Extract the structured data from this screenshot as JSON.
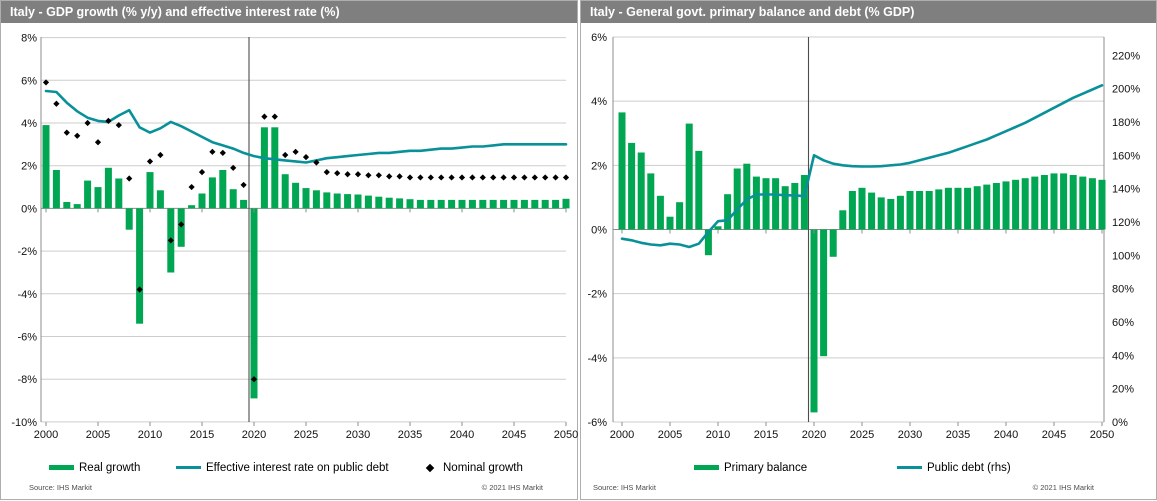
{
  "colors": {
    "bar_green": "#00a651",
    "line_teal": "#089199",
    "scatter_black": "#000000",
    "titlebar_gray": "#7f7f7f"
  },
  "chart_data": [
    {
      "type": "bar+line+scatter",
      "title": "Italy - GDP growth (% y/y) and effective interest rate (%)",
      "source": "Source:  IHS Markit",
      "copyright": "© 2021  IHS Markit",
      "legend_position": "bottom",
      "grid": true,
      "ylim": [
        -10,
        8
      ],
      "divider_year": 2019.5,
      "x_ticks": [
        "2000",
        "2005",
        "2010",
        "2015",
        "2020",
        "2025",
        "2030",
        "2035",
        "2040",
        "2045",
        "2050"
      ],
      "y_ticks": [
        {
          "v": 8,
          "label": "8%"
        },
        {
          "v": 6,
          "label": "6%"
        },
        {
          "v": 4,
          "label": "4%"
        },
        {
          "v": 2,
          "label": "2%"
        },
        {
          "v": 0,
          "label": "0%"
        },
        {
          "v": -2,
          "label": "-2%"
        },
        {
          "v": -4,
          "label": "-4%"
        },
        {
          "v": -6,
          "label": "-6%"
        },
        {
          "v": -8,
          "label": "-8%"
        },
        {
          "v": -10,
          "label": "-10%"
        }
      ],
      "years": [
        2000,
        2001,
        2002,
        2003,
        2004,
        2005,
        2006,
        2007,
        2008,
        2009,
        2010,
        2011,
        2012,
        2013,
        2014,
        2015,
        2016,
        2017,
        2018,
        2019,
        2020,
        2021,
        2022,
        2023,
        2024,
        2025,
        2026,
        2027,
        2028,
        2029,
        2030,
        2031,
        2032,
        2033,
        2034,
        2035,
        2036,
        2037,
        2038,
        2039,
        2040,
        2041,
        2042,
        2043,
        2044,
        2045,
        2046,
        2047,
        2048,
        2049,
        2050
      ],
      "series": [
        {
          "name": "Real growth",
          "type": "bar",
          "color": "#00a651",
          "axis": "left",
          "values": [
            3.9,
            1.8,
            0.3,
            0.2,
            1.3,
            1.0,
            1.9,
            1.4,
            -1.0,
            -5.4,
            1.7,
            0.85,
            -3.0,
            -1.8,
            0.15,
            0.7,
            1.45,
            1.8,
            0.9,
            0.4,
            -8.9,
            3.8,
            3.8,
            1.6,
            1.2,
            0.95,
            0.85,
            0.75,
            0.7,
            0.67,
            0.65,
            0.6,
            0.55,
            0.5,
            0.47,
            0.43,
            0.4,
            0.4,
            0.4,
            0.4,
            0.4,
            0.4,
            0.4,
            0.4,
            0.4,
            0.4,
            0.4,
            0.4,
            0.4,
            0.4,
            0.45
          ]
        },
        {
          "name": "Effective interest rate on public debt",
          "type": "line",
          "color": "#089199",
          "axis": "left",
          "values": [
            5.5,
            5.45,
            4.95,
            4.55,
            4.25,
            4.1,
            4.05,
            4.35,
            4.6,
            3.8,
            3.55,
            3.75,
            4.05,
            3.85,
            3.6,
            3.35,
            3.1,
            2.95,
            2.8,
            2.6,
            2.45,
            2.35,
            2.3,
            2.25,
            2.2,
            2.15,
            2.25,
            2.35,
            2.4,
            2.45,
            2.5,
            2.55,
            2.6,
            2.6,
            2.65,
            2.7,
            2.7,
            2.75,
            2.8,
            2.8,
            2.85,
            2.9,
            2.9,
            2.95,
            3.0,
            3.0,
            3.0,
            3.0,
            3.0,
            3.0,
            3.0
          ]
        },
        {
          "name": "Nominal growth",
          "type": "scatter",
          "color": "#000000",
          "axis": "left",
          "values": [
            5.9,
            4.9,
            3.55,
            3.4,
            4.0,
            3.1,
            4.1,
            3.9,
            1.4,
            -3.8,
            2.2,
            2.5,
            -1.5,
            -0.75,
            1.0,
            1.7,
            2.65,
            2.6,
            1.9,
            1.1,
            -8.0,
            4.3,
            4.3,
            2.5,
            2.65,
            2.4,
            2.15,
            1.7,
            1.65,
            1.6,
            1.6,
            1.55,
            1.55,
            1.5,
            1.5,
            1.45,
            1.45,
            1.45,
            1.45,
            1.45,
            1.45,
            1.45,
            1.45,
            1.45,
            1.45,
            1.45,
            1.45,
            1.45,
            1.45,
            1.45,
            1.45
          ]
        }
      ]
    },
    {
      "type": "bar+line",
      "title": "Italy - General govt. primary balance and debt (%  GDP)",
      "source": "Source:  IHS Markit",
      "copyright": "© 2021  IHS Markit",
      "legend_position": "bottom",
      "grid": true,
      "ylim_left": [
        -6,
        6
      ],
      "ylim_right": [
        0,
        220
      ],
      "divider_year": 2019.5,
      "x_ticks": [
        "2000",
        "2005",
        "2010",
        "2015",
        "2020",
        "2025",
        "2030",
        "2035",
        "2040",
        "2045",
        "2050"
      ],
      "y_ticks_left": [
        {
          "v": 6,
          "label": "6%"
        },
        {
          "v": 4,
          "label": "4%"
        },
        {
          "v": 2,
          "label": "2%"
        },
        {
          "v": 0,
          "label": "0%"
        },
        {
          "v": -2,
          "label": "-2%"
        },
        {
          "v": -4,
          "label": "-4%"
        },
        {
          "v": -6,
          "label": "-6%"
        }
      ],
      "y_ticks_right": [
        {
          "v": 220,
          "label": "220%"
        },
        {
          "v": 200,
          "label": "200%"
        },
        {
          "v": 180,
          "label": "180%"
        },
        {
          "v": 160,
          "label": "160%"
        },
        {
          "v": 140,
          "label": "140%"
        },
        {
          "v": 120,
          "label": "120%"
        },
        {
          "v": 100,
          "label": "100%"
        },
        {
          "v": 80,
          "label": "80%"
        },
        {
          "v": 60,
          "label": "60%"
        },
        {
          "v": 40,
          "label": "40%"
        },
        {
          "v": 20,
          "label": "20%"
        },
        {
          "v": 0,
          "label": "0%"
        }
      ],
      "years": [
        2000,
        2001,
        2002,
        2003,
        2004,
        2005,
        2006,
        2007,
        2008,
        2009,
        2010,
        2011,
        2012,
        2013,
        2014,
        2015,
        2016,
        2017,
        2018,
        2019,
        2020,
        2021,
        2022,
        2023,
        2024,
        2025,
        2026,
        2027,
        2028,
        2029,
        2030,
        2031,
        2032,
        2033,
        2034,
        2035,
        2036,
        2037,
        2038,
        2039,
        2040,
        2041,
        2042,
        2043,
        2044,
        2045,
        2046,
        2047,
        2048,
        2049,
        2050
      ],
      "series": [
        {
          "name": "Primary balance",
          "type": "bar",
          "color": "#00a651",
          "axis": "left",
          "values": [
            3.65,
            2.7,
            2.4,
            1.75,
            1.05,
            0.4,
            0.85,
            3.3,
            2.45,
            -0.8,
            0.1,
            1.1,
            1.9,
            2.05,
            1.65,
            1.6,
            1.6,
            1.35,
            1.45,
            1.7,
            -5.7,
            -3.95,
            -0.85,
            0.6,
            1.2,
            1.3,
            1.15,
            1.0,
            0.95,
            1.05,
            1.2,
            1.2,
            1.2,
            1.25,
            1.3,
            1.3,
            1.3,
            1.35,
            1.4,
            1.45,
            1.5,
            1.55,
            1.6,
            1.65,
            1.7,
            1.75,
            1.75,
            1.7,
            1.65,
            1.6,
            1.55
          ]
        },
        {
          "name": "Public debt (rhs)",
          "type": "line",
          "color": "#089199",
          "axis": "right",
          "values": [
            110,
            109,
            107.5,
            106.5,
            106,
            107,
            106.5,
            105,
            107,
            114,
            120.5,
            121,
            127.5,
            133.5,
            136.5,
            136.5,
            136.5,
            136,
            136,
            135.5,
            160,
            157,
            155,
            154,
            153.5,
            153.3,
            153.3,
            153.5,
            154,
            154.5,
            155.5,
            157,
            158.5,
            160,
            161.5,
            163.5,
            165.5,
            167.5,
            169.5,
            172,
            174.5,
            177,
            179.5,
            182.5,
            185.5,
            188.5,
            191.5,
            194.5,
            197,
            199.5,
            202
          ]
        }
      ]
    }
  ]
}
